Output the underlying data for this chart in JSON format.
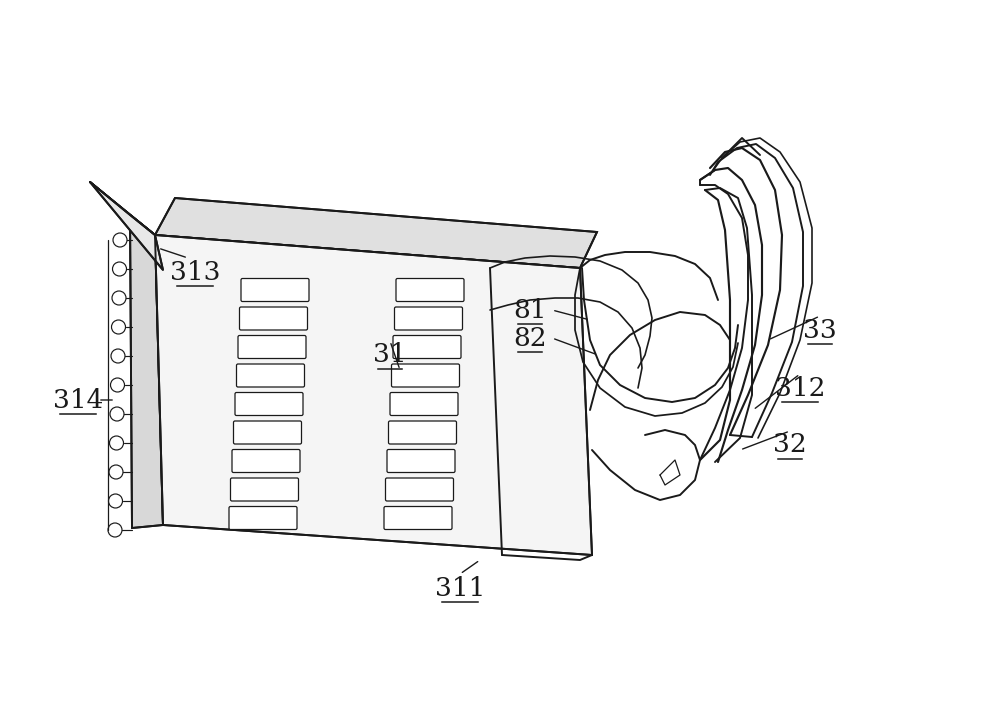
{
  "background_color": "#ffffff",
  "line_color": "#1a1a1a",
  "line_width": 1.4,
  "fig_width": 10.0,
  "fig_height": 7.26,
  "label_fontsize": 19
}
